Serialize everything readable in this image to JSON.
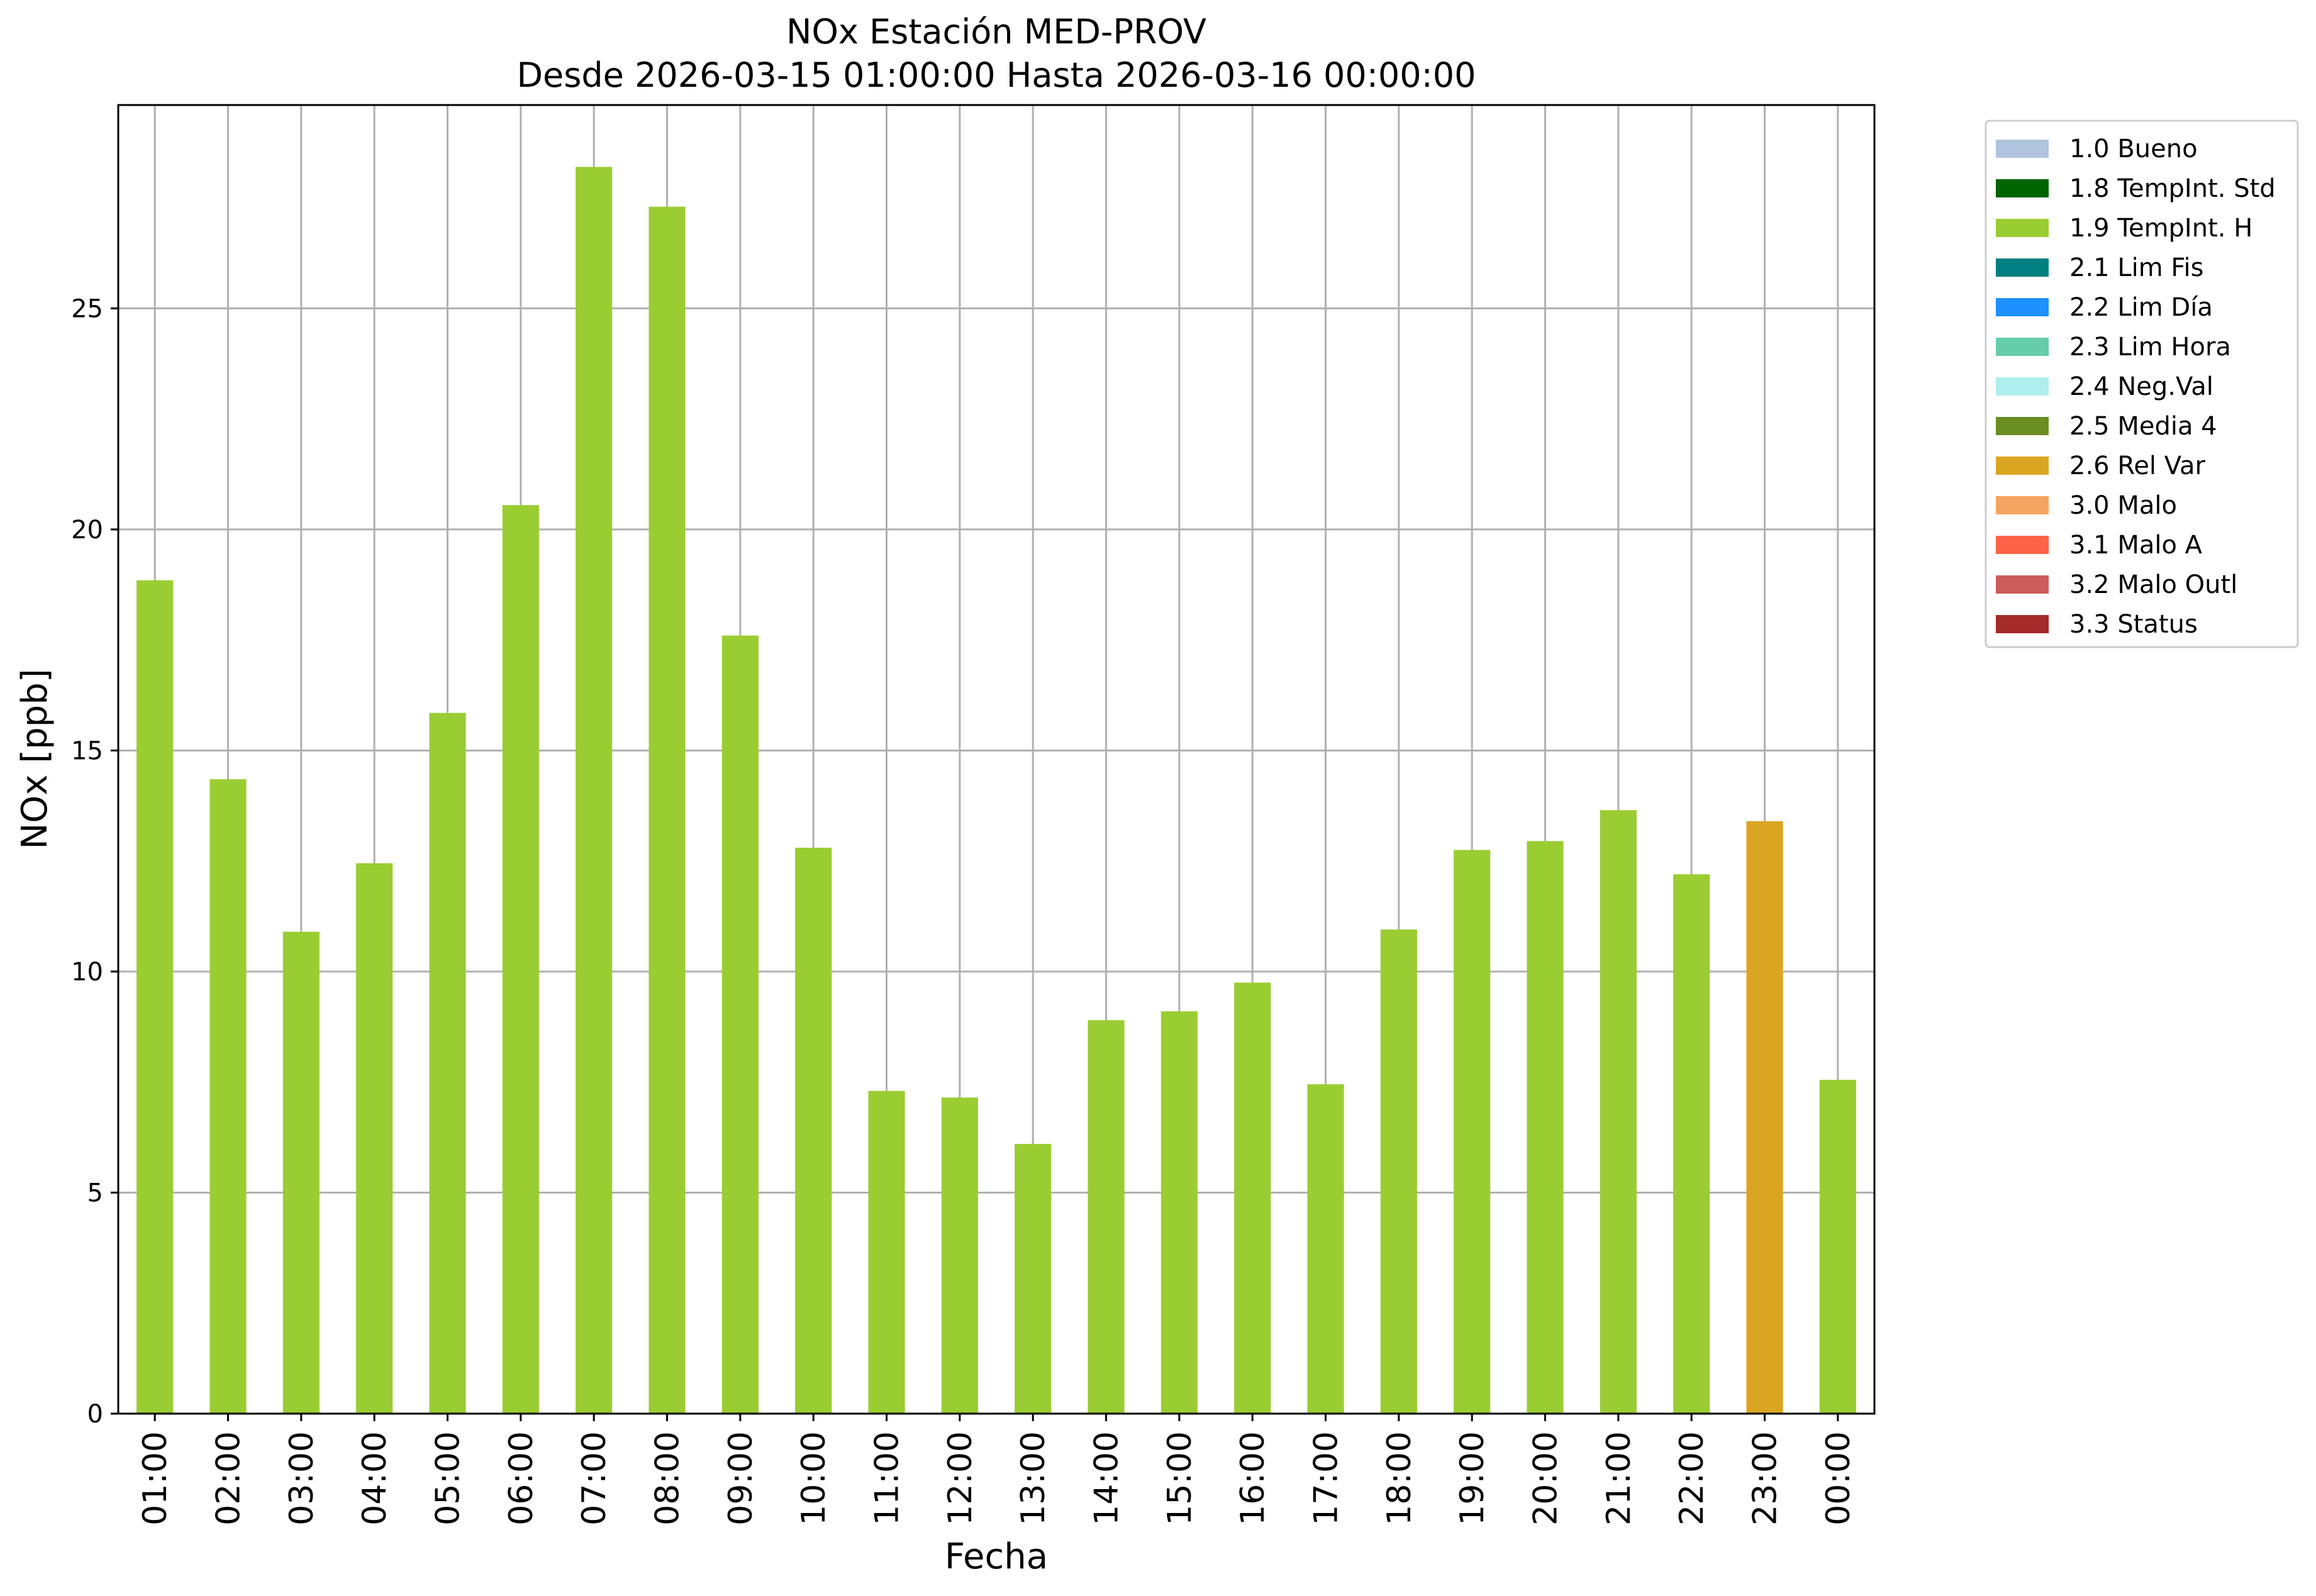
{
  "chart_data": {
    "type": "bar",
    "title_line1": "NOx Estación MED-PROV",
    "title_line2": "Desde 2026-03-15 01:00:00 Hasta 2026-03-16 00:00:00",
    "xlabel": "Fecha",
    "ylabel": "NOx [ppb]",
    "ylim": [
      0,
      29.6
    ],
    "yticks": [
      0,
      5,
      10,
      15,
      20,
      25
    ],
    "grid": true,
    "legend_position": "outside-top-right",
    "categories": [
      "01:00",
      "02:00",
      "03:00",
      "04:00",
      "05:00",
      "06:00",
      "07:00",
      "08:00",
      "09:00",
      "10:00",
      "11:00",
      "12:00",
      "13:00",
      "14:00",
      "15:00",
      "16:00",
      "17:00",
      "18:00",
      "19:00",
      "20:00",
      "21:00",
      "22:00",
      "23:00",
      "00:00"
    ],
    "values": [
      18.85,
      14.35,
      10.9,
      12.45,
      15.85,
      20.55,
      28.2,
      27.3,
      17.6,
      12.8,
      7.3,
      7.15,
      6.1,
      8.9,
      9.1,
      9.75,
      7.45,
      10.95,
      12.75,
      12.95,
      13.65,
      12.2,
      13.4,
      7.55
    ],
    "flags": [
      "1.9 TempInt. H",
      "1.9 TempInt. H",
      "1.9 TempInt. H",
      "1.9 TempInt. H",
      "1.9 TempInt. H",
      "1.9 TempInt. H",
      "1.9 TempInt. H",
      "1.9 TempInt. H",
      "1.9 TempInt. H",
      "1.9 TempInt. H",
      "1.9 TempInt. H",
      "1.9 TempInt. H",
      "1.9 TempInt. H",
      "1.9 TempInt. H",
      "1.9 TempInt. H",
      "1.9 TempInt. H",
      "1.9 TempInt. H",
      "1.9 TempInt. H",
      "1.9 TempInt. H",
      "1.9 TempInt. H",
      "1.9 TempInt. H",
      "1.9 TempInt. H",
      "2.6 Rel Var",
      "1.9 TempInt. H"
    ],
    "legend": [
      {
        "label": "1.0 Bueno",
        "color": "#b0c4de"
      },
      {
        "label": "1.8 TempInt. Std",
        "color": "#006400"
      },
      {
        "label": "1.9 TempInt. H",
        "color": "#9acd32"
      },
      {
        "label": "2.1 Lim Fis",
        "color": "#008080"
      },
      {
        "label": "2.2 Lim Día",
        "color": "#1e90ff"
      },
      {
        "label": "2.3 Lim Hora",
        "color": "#66cdaa"
      },
      {
        "label": "2.4 Neg.Val",
        "color": "#afeeee"
      },
      {
        "label": "2.5 Media 4",
        "color": "#6b8e23"
      },
      {
        "label": "2.6 Rel Var",
        "color": "#daa520"
      },
      {
        "label": "3.0 Malo",
        "color": "#f4a460"
      },
      {
        "label": "3.1 Malo A",
        "color": "#ff6347"
      },
      {
        "label": "3.2 Malo Outl",
        "color": "#cd5c5c"
      },
      {
        "label": "3.3 Status",
        "color": "#a52a2a"
      }
    ]
  }
}
